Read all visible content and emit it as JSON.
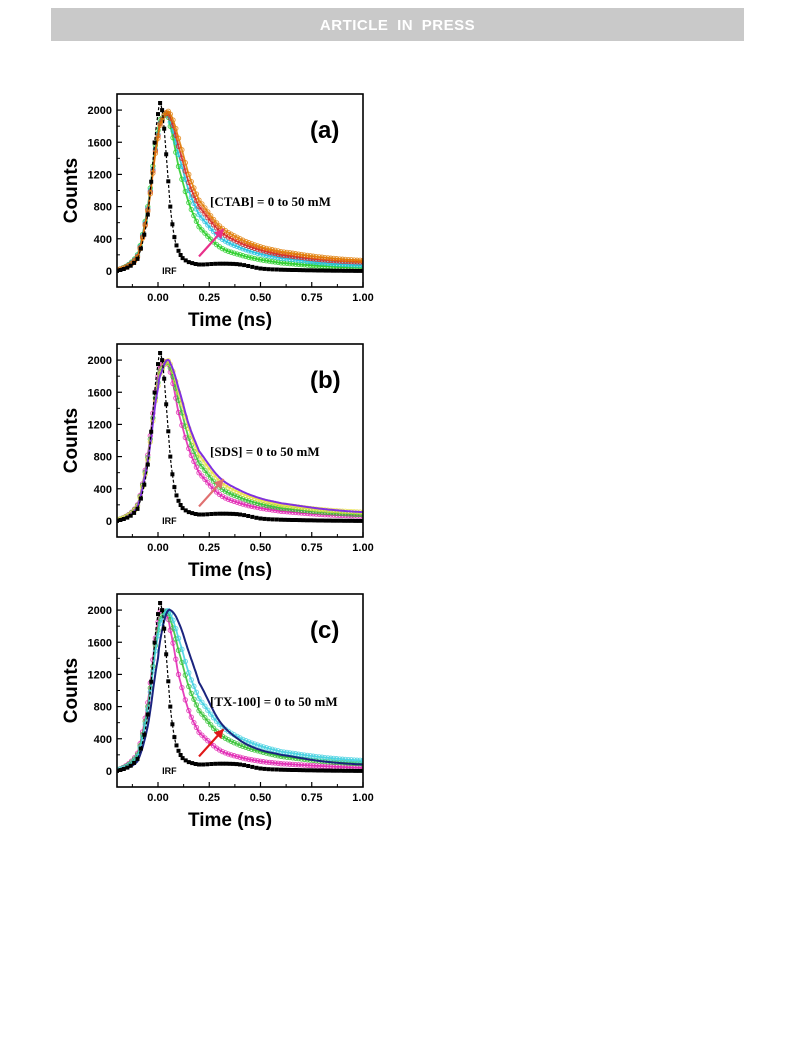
{
  "header": {
    "banner_text": "ARTICLE IN PRESS"
  },
  "chart_data": [
    {
      "type": "line",
      "panel_label": "(a)",
      "xlabel": "Time (ns)",
      "ylabel": "Counts",
      "xlim": [
        -0.2,
        1.0
      ],
      "ylim": [
        -200,
        2200
      ],
      "xticks": [
        0.0,
        0.25,
        0.5,
        0.75,
        1.0
      ],
      "xtick_labels": [
        "0.00",
        "0.25",
        "0.50",
        "0.75",
        "1.00"
      ],
      "yticks": [
        0,
        400,
        800,
        1200,
        1600,
        2000
      ],
      "ytick_labels": [
        "0",
        "400",
        "800",
        "1200",
        "1600",
        "2000"
      ],
      "annotation": "[CTAB] = 0 to 50 mM",
      "irf_label": "IRF",
      "arrow_color": "#e8308a",
      "series": [
        {
          "name": "IRF",
          "color": "#000000",
          "style": "markers",
          "x": [
            -0.2,
            -0.1,
            -0.05,
            0.0,
            0.02,
            0.04,
            0.06,
            0.08,
            0.1,
            0.12,
            0.15,
            0.2,
            0.3,
            0.4,
            0.5,
            0.6,
            0.8,
            1.0
          ],
          "y": [
            0,
            150,
            700,
            1950,
            2000,
            1450,
            800,
            420,
            250,
            160,
            110,
            80,
            90,
            80,
            30,
            15,
            5,
            0
          ]
        },
        {
          "color": "#22cc22",
          "style": "markers",
          "x": [
            -0.2,
            -0.1,
            -0.05,
            0.0,
            0.02,
            0.04,
            0.06,
            0.1,
            0.15,
            0.2,
            0.3,
            0.4,
            0.5,
            0.6,
            0.8,
            1.0
          ],
          "y": [
            10,
            200,
            800,
            1750,
            1900,
            1950,
            1800,
            1300,
            850,
            550,
            300,
            200,
            140,
            100,
            60,
            40
          ]
        },
        {
          "color": "#20c0e0",
          "style": "markers",
          "x": [
            -0.2,
            -0.1,
            -0.05,
            0.0,
            0.02,
            0.04,
            0.06,
            0.1,
            0.15,
            0.2,
            0.3,
            0.4,
            0.5,
            0.6,
            0.8,
            1.0
          ],
          "y": [
            10,
            190,
            780,
            1700,
            1880,
            1950,
            1850,
            1450,
            1000,
            700,
            420,
            290,
            210,
            160,
            100,
            70
          ]
        },
        {
          "color": "#d62020",
          "style": "markers",
          "x": [
            -0.2,
            -0.1,
            -0.05,
            0.0,
            0.02,
            0.04,
            0.06,
            0.1,
            0.15,
            0.2,
            0.3,
            0.4,
            0.5,
            0.6,
            0.8,
            1.0
          ],
          "y": [
            10,
            180,
            760,
            1680,
            1880,
            1960,
            1900,
            1550,
            1100,
            800,
            500,
            350,
            260,
            200,
            140,
            110
          ]
        },
        {
          "color": "#e07b00",
          "style": "markers",
          "x": [
            -0.2,
            -0.1,
            -0.05,
            0.0,
            0.02,
            0.04,
            0.06,
            0.1,
            0.15,
            0.2,
            0.3,
            0.4,
            0.5,
            0.6,
            0.8,
            1.0
          ],
          "y": [
            10,
            170,
            740,
            1650,
            1870,
            1970,
            1950,
            1650,
            1200,
            880,
            560,
            400,
            300,
            240,
            170,
            130
          ]
        }
      ]
    },
    {
      "type": "line",
      "panel_label": "(b)",
      "xlabel": "Time (ns)",
      "ylabel": "Counts",
      "xlim": [
        -0.2,
        1.0
      ],
      "ylim": [
        -200,
        2200
      ],
      "xticks": [
        0.0,
        0.25,
        0.5,
        0.75,
        1.0
      ],
      "xtick_labels": [
        "0.00",
        "0.25",
        "0.50",
        "0.75",
        "1.00"
      ],
      "yticks": [
        0,
        400,
        800,
        1200,
        1600,
        2000
      ],
      "ytick_labels": [
        "0",
        "400",
        "800",
        "1200",
        "1600",
        "2000"
      ],
      "annotation": "[SDS] = 0 to 50 mM",
      "irf_label": "IRF",
      "arrow_color": "#e07070",
      "series": [
        {
          "name": "IRF",
          "color": "#000000",
          "style": "markers",
          "x": [
            -0.2,
            -0.1,
            -0.05,
            0.0,
            0.02,
            0.04,
            0.06,
            0.08,
            0.1,
            0.12,
            0.15,
            0.2,
            0.3,
            0.4,
            0.5,
            0.6,
            0.8,
            1.0
          ],
          "y": [
            0,
            150,
            700,
            1950,
            2000,
            1450,
            800,
            420,
            250,
            160,
            110,
            80,
            90,
            80,
            30,
            15,
            5,
            0
          ]
        },
        {
          "color": "#e020b0",
          "style": "markers",
          "x": [
            -0.2,
            -0.1,
            -0.05,
            0.0,
            0.02,
            0.04,
            0.06,
            0.1,
            0.15,
            0.2,
            0.3,
            0.4,
            0.5,
            0.6,
            0.8,
            1.0
          ],
          "y": [
            10,
            200,
            820,
            1800,
            1950,
            1980,
            1850,
            1350,
            900,
            600,
            330,
            220,
            160,
            120,
            80,
            60
          ]
        },
        {
          "color": "#30c030",
          "style": "markers",
          "x": [
            -0.2,
            -0.1,
            -0.05,
            0.0,
            0.02,
            0.04,
            0.06,
            0.1,
            0.15,
            0.2,
            0.3,
            0.4,
            0.5,
            0.6,
            0.8,
            1.0
          ],
          "y": [
            10,
            190,
            790,
            1720,
            1900,
            1970,
            1900,
            1500,
            1030,
            720,
            420,
            290,
            210,
            160,
            110,
            80
          ]
        },
        {
          "color": "#e8e040",
          "style": "markers",
          "x": [
            -0.2,
            -0.1,
            -0.05,
            0.0,
            0.02,
            0.04,
            0.06,
            0.1,
            0.15,
            0.2,
            0.3,
            0.4,
            0.5,
            0.6,
            0.8,
            1.0
          ],
          "y": [
            10,
            180,
            760,
            1680,
            1880,
            1980,
            1950,
            1600,
            1150,
            820,
            500,
            350,
            260,
            200,
            140,
            110
          ]
        },
        {
          "color": "#8030e0",
          "style": "line",
          "x": [
            -0.2,
            -0.1,
            -0.05,
            0.0,
            0.02,
            0.04,
            0.06,
            0.1,
            0.15,
            0.2,
            0.3,
            0.4,
            0.5,
            0.6,
            0.8,
            1.0
          ],
          "y": [
            5,
            170,
            740,
            1650,
            1870,
            1990,
            1960,
            1650,
            1200,
            870,
            540,
            380,
            280,
            220,
            150,
            110
          ]
        }
      ]
    },
    {
      "type": "line",
      "panel_label": "(c)",
      "xlabel": "Time (ns)",
      "ylabel": "Counts",
      "xlim": [
        -0.2,
        1.0
      ],
      "ylim": [
        -200,
        2200
      ],
      "xticks": [
        0.0,
        0.25,
        0.5,
        0.75,
        1.0
      ],
      "xtick_labels": [
        "0.00",
        "0.25",
        "0.50",
        "0.75",
        "1.00"
      ],
      "yticks": [
        0,
        400,
        800,
        1200,
        1600,
        2000
      ],
      "ytick_labels": [
        "0",
        "400",
        "800",
        "1200",
        "1600",
        "2000"
      ],
      "annotation": "[TX-100] = 0 to 50 mM",
      "irf_label": "IRF",
      "arrow_color": "#e01818",
      "series": [
        {
          "name": "IRF",
          "color": "#000000",
          "style": "markers",
          "x": [
            -0.2,
            -0.1,
            -0.05,
            0.0,
            0.02,
            0.04,
            0.06,
            0.08,
            0.1,
            0.12,
            0.15,
            0.2,
            0.3,
            0.4,
            0.5,
            0.6,
            0.8,
            1.0
          ],
          "y": [
            0,
            150,
            700,
            1950,
            2000,
            1450,
            800,
            420,
            250,
            160,
            110,
            80,
            90,
            80,
            30,
            15,
            5,
            0
          ]
        },
        {
          "color": "#e020b0",
          "style": "markers",
          "x": [
            -0.2,
            -0.1,
            -0.05,
            0.0,
            0.02,
            0.04,
            0.06,
            0.1,
            0.15,
            0.2,
            0.3,
            0.4,
            0.5,
            0.6,
            0.8,
            1.0
          ],
          "y": [
            10,
            220,
            850,
            1850,
            1980,
            1950,
            1750,
            1200,
            750,
            480,
            260,
            170,
            120,
            90,
            60,
            40
          ]
        },
        {
          "color": "#30c030",
          "style": "markers",
          "x": [
            -0.2,
            -0.1,
            -0.05,
            0.0,
            0.02,
            0.04,
            0.06,
            0.1,
            0.15,
            0.2,
            0.3,
            0.4,
            0.5,
            0.6,
            0.8,
            1.0
          ],
          "y": [
            10,
            200,
            800,
            1750,
            1930,
            1980,
            1880,
            1500,
            1050,
            750,
            460,
            320,
            240,
            180,
            120,
            90
          ]
        },
        {
          "color": "#40d0e0",
          "style": "markers",
          "x": [
            -0.2,
            -0.1,
            -0.05,
            0.0,
            0.02,
            0.04,
            0.06,
            0.1,
            0.15,
            0.2,
            0.3,
            0.4,
            0.5,
            0.6,
            0.8,
            1.0
          ],
          "y": [
            10,
            180,
            760,
            1680,
            1890,
            1990,
            1950,
            1650,
            1220,
            900,
            580,
            410,
            310,
            240,
            170,
            130
          ]
        },
        {
          "color": "#1a237e",
          "style": "line",
          "x": [
            -0.2,
            -0.1,
            -0.05,
            0.0,
            0.02,
            0.04,
            0.06,
            0.1,
            0.15,
            0.2,
            0.3,
            0.4,
            0.5,
            0.6,
            0.8,
            1.0
          ],
          "y": [
            5,
            120,
            560,
            1400,
            1750,
            1950,
            2000,
            1850,
            1480,
            1100,
            620,
            380,
            260,
            200,
            120,
            80
          ]
        }
      ]
    }
  ]
}
